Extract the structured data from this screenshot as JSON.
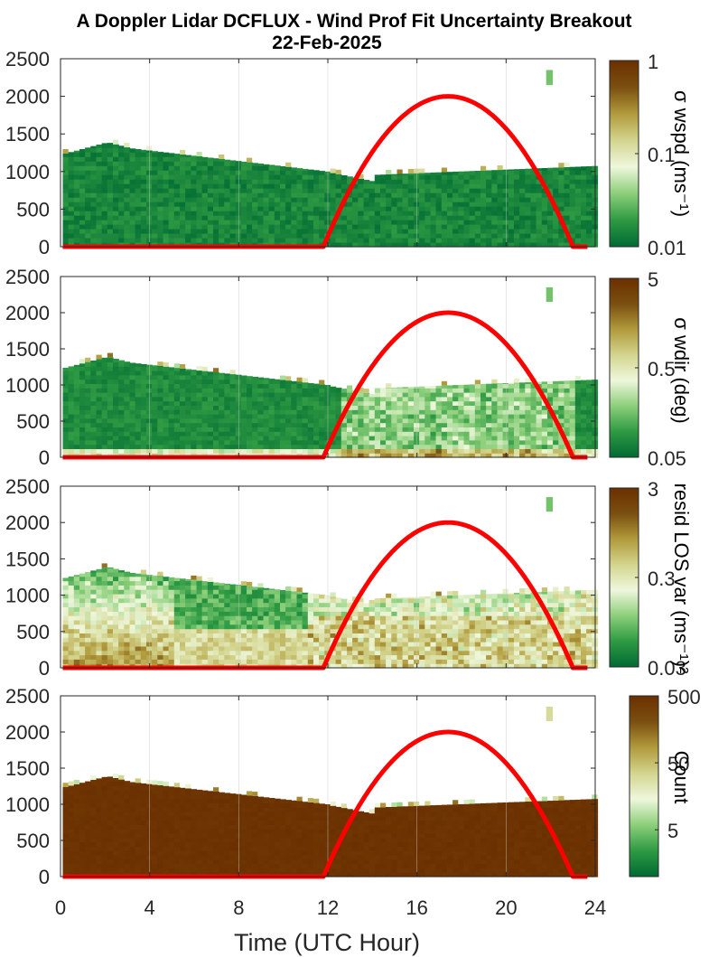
{
  "title_line1": "A Doppler Lidar DCFLUX - Wind Prof Fit Uncertainty Breakout",
  "title_line2": "22-Feb-2025",
  "xlabel": "Time (UTC Hour)",
  "colors": {
    "sun_curve": "#ff0000",
    "colormap": [
      "#006b33",
      "#2e9a43",
      "#8ccf7a",
      "#eef7dc",
      "#d3d58e",
      "#b19a3c",
      "#7a4f10",
      "#6b3000"
    ]
  },
  "chart_data": [
    {
      "type": "heatmap",
      "x_ticks": [
        "0",
        "4",
        "8",
        "12",
        "16",
        "20",
        "24"
      ],
      "y_ticks": [
        "0",
        "500",
        "1000",
        "1500",
        "2000",
        "2500"
      ],
      "xlim": [
        0,
        24
      ],
      "ylim": [
        0,
        2500
      ],
      "grid": "vertical",
      "colorbar": {
        "label": "σ wspd (ms⁻¹)",
        "scale": "log",
        "range": [
          0.01,
          1
        ],
        "ticks": [
          "0.01",
          "0.1",
          "1"
        ]
      },
      "sun_curve": {
        "start_hour": 11.8,
        "peak_hour": 17.4,
        "end_hour": 23.0,
        "peak_value": 2000
      }
    },
    {
      "type": "heatmap",
      "x_ticks": [
        "0",
        "4",
        "8",
        "12",
        "16",
        "20",
        "24"
      ],
      "y_ticks": [
        "0",
        "500",
        "1000",
        "1500",
        "2000",
        "2500"
      ],
      "xlim": [
        0,
        24
      ],
      "ylim": [
        0,
        2500
      ],
      "grid": "vertical",
      "colorbar": {
        "label": "σ wdir (deg)",
        "scale": "log",
        "range": [
          0.05,
          5
        ],
        "ticks": [
          "0.05",
          "0.5",
          "5"
        ]
      },
      "sun_curve": {
        "start_hour": 11.8,
        "peak_hour": 17.4,
        "end_hour": 23.0,
        "peak_value": 2000
      }
    },
    {
      "type": "heatmap",
      "x_ticks": [
        "0",
        "4",
        "8",
        "12",
        "16",
        "20",
        "24"
      ],
      "y_ticks": [
        "0",
        "500",
        "1000",
        "1500",
        "2000",
        "2500"
      ],
      "xlim": [
        0,
        24
      ],
      "ylim": [
        0,
        2500
      ],
      "grid": "vertical",
      "colorbar": {
        "label": "resid LOS var (ms⁻¹)²",
        "scale": "log",
        "range": [
          0.03,
          3
        ],
        "ticks": [
          "0.03",
          "0.3",
          "3"
        ]
      },
      "sun_curve": {
        "start_hour": 11.8,
        "peak_hour": 17.4,
        "end_hour": 23.0,
        "peak_value": 2000
      }
    },
    {
      "type": "heatmap",
      "x_ticks": [
        "0",
        "4",
        "8",
        "12",
        "16",
        "20",
        "24"
      ],
      "y_ticks": [
        "0",
        "500",
        "1000",
        "1500",
        "2000",
        "2500"
      ],
      "xlim": [
        0,
        24
      ],
      "ylim": [
        0,
        2500
      ],
      "grid": "vertical",
      "colorbar": {
        "label": "Count",
        "scale": "log",
        "range": [
          1,
          500
        ],
        "ticks": [
          "5",
          "50",
          "500"
        ]
      },
      "sun_curve": {
        "start_hour": 11.8,
        "peak_hour": 17.4,
        "end_hour": 23.0,
        "peak_value": 2000
      }
    }
  ]
}
